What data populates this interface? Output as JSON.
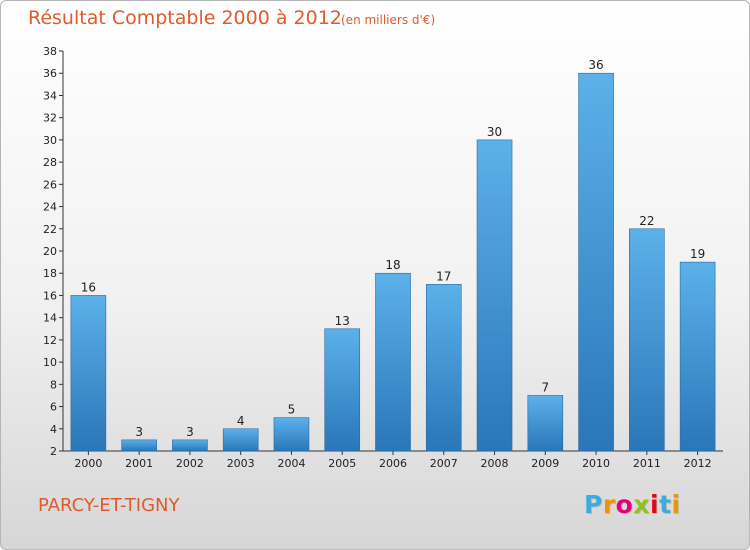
{
  "header": {
    "title": "Résultat Comptable 2000 à 2012",
    "subtitle": "(en milliers d'€)"
  },
  "footer": {
    "place": "PARCY-ET-TIGNY",
    "logo": {
      "letters": [
        "P",
        "r",
        "o",
        "x",
        "i",
        "t",
        "i"
      ],
      "colors": [
        "#3fa9e0",
        "#f39200",
        "#e2007a",
        "#95c11f",
        "#e30613",
        "#3fa9e0",
        "#f39200"
      ]
    }
  },
  "colors": {
    "bar_light": "#5cb1ea",
    "bar_dark": "#2a76b8",
    "text_accent": "#e05a2c"
  },
  "chart_data": {
    "type": "bar",
    "title": "Résultat Comptable 2000 à 2012",
    "subtitle": "(en milliers d'€)",
    "xlabel": "",
    "ylabel": "",
    "categories": [
      "2000",
      "2001",
      "2002",
      "2003",
      "2004",
      "2005",
      "2006",
      "2007",
      "2008",
      "2009",
      "2010",
      "2011",
      "2012"
    ],
    "values": [
      16,
      3,
      3,
      4,
      5,
      13,
      18,
      17,
      30,
      7,
      36,
      22,
      19
    ],
    "ylim": [
      2,
      38
    ],
    "yticks": [
      2,
      4,
      6,
      8,
      10,
      12,
      14,
      16,
      18,
      20,
      22,
      24,
      26,
      28,
      30,
      32,
      34,
      36,
      38
    ],
    "grid": false
  }
}
